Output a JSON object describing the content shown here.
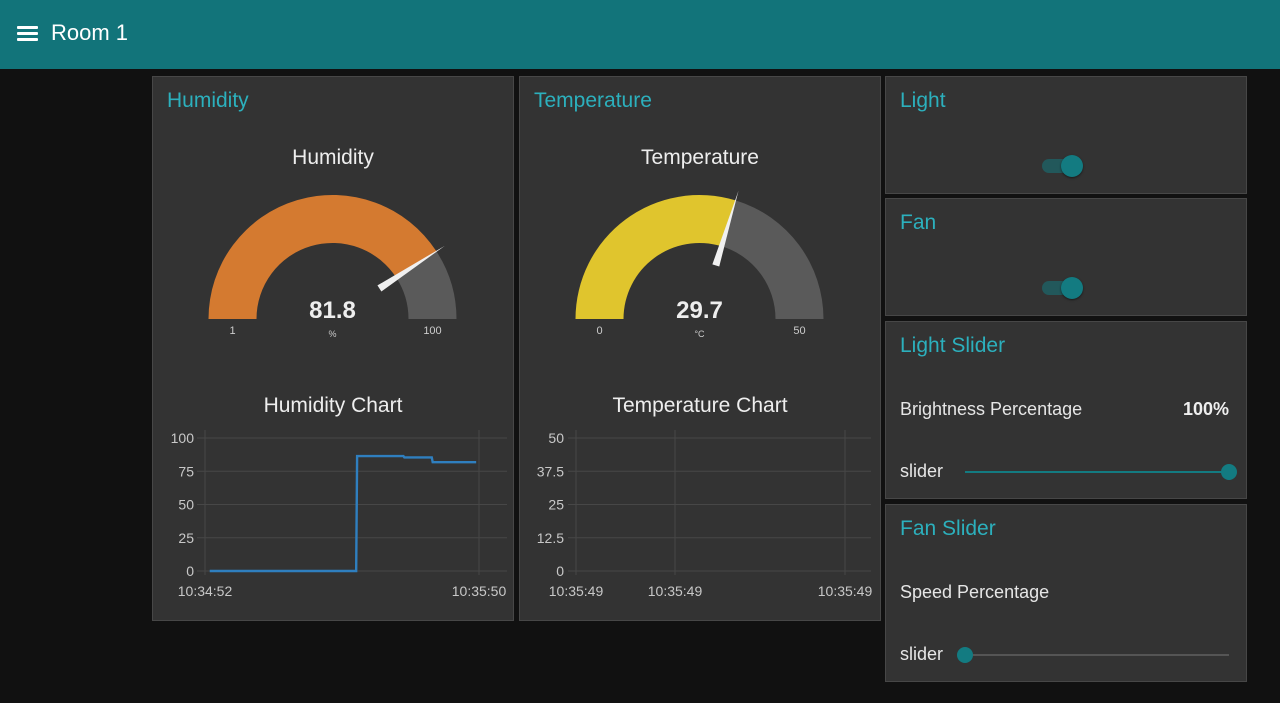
{
  "header": {
    "title": "Room 1",
    "menu_icon": "hamburger-menu-icon"
  },
  "colors": {
    "header_bg": "#12747a",
    "accent": "#137b81",
    "panel_title": "#2cb0bd",
    "gauge_track": "#5a5a5a",
    "humidity_gauge": "#d47a30",
    "temperature_gauge": "#e0c52d",
    "chart_line": "#2f7fbf",
    "grid": "#474747",
    "axis_text": "#c8c8c8"
  },
  "panels": {
    "humidity": {
      "title": "Humidity",
      "gauge": {
        "label": "Humidity",
        "value": 81.8,
        "value_text": "81.8",
        "units": "%",
        "min": 1,
        "max": 100,
        "min_label": "1",
        "max_label": "100",
        "color": "#d47a30"
      },
      "chart_title": "Humidity Chart"
    },
    "temperature": {
      "title": "Temperature",
      "gauge": {
        "label": "Temperature",
        "value": 29.7,
        "value_text": "29.7",
        "units": "°C",
        "min": 0,
        "max": 50,
        "min_label": "0",
        "max_label": "50",
        "color": "#e0c52d"
      },
      "chart_title": "Temperature Chart"
    },
    "light": {
      "title": "Light",
      "toggle_on": true
    },
    "fan": {
      "title": "Fan",
      "toggle_on": true
    },
    "light_slider": {
      "title": "Light Slider",
      "text_label": "Brightness Percentage",
      "text_value": "100%",
      "slider_label": "slider",
      "slider_value": 100,
      "slider_min": 0,
      "slider_max": 100
    },
    "fan_slider": {
      "title": "Fan Slider",
      "text_label": "Speed Percentage",
      "text_value": "",
      "slider_label": "slider",
      "slider_value": 0,
      "slider_min": 0,
      "slider_max": 100
    }
  },
  "chart_data": [
    {
      "type": "line",
      "title": "Humidity Chart",
      "xlabel": "",
      "ylabel": "",
      "ylim": [
        0,
        100
      ],
      "y_ticks": [
        0,
        25,
        50,
        75,
        100
      ],
      "y_tick_labels": [
        "0",
        "25",
        "50",
        "75",
        "100"
      ],
      "x_tick_labels": [
        "10:34:52",
        "10:35:50"
      ],
      "x_range_seconds": [
        0,
        58
      ],
      "grid": true,
      "legend": "none",
      "series": [
        {
          "name": "Humidity",
          "color": "#2f7fbf",
          "x_seconds_after_10:34:52": [
            1,
            32,
            32.2,
            42,
            42.2,
            48,
            48.2,
            57.4
          ],
          "values": [
            0,
            0,
            86.4,
            86.4,
            85.4,
            85.4,
            81.8,
            81.8
          ]
        }
      ]
    },
    {
      "type": "line",
      "title": "Temperature Chart",
      "xlabel": "",
      "ylabel": "",
      "ylim": [
        0,
        50
      ],
      "y_ticks": [
        0,
        12.5,
        25,
        37.5,
        50
      ],
      "y_tick_labels": [
        "0",
        "12.5",
        "25",
        "37.5",
        "50"
      ],
      "x_tick_labels": [
        "10:35:49",
        "10:35:49",
        "10:35:49"
      ],
      "grid": true,
      "legend": "none",
      "series": []
    }
  ]
}
